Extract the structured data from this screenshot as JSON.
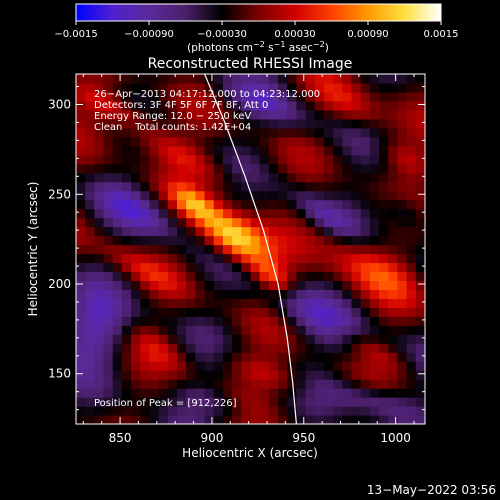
{
  "chart_data": {
    "type": "heatmap",
    "title": "Reconstructed RHESSI Image",
    "xlabel": "Heliocentric X (arcsec)",
    "ylabel": "Heliocentric Y (arcsec)",
    "xlim": [
      826,
      1016
    ],
    "ylim": [
      122,
      317
    ],
    "x_ticks": [
      850,
      900,
      950,
      1000
    ],
    "y_ticks": [
      150,
      200,
      250,
      300
    ],
    "x_tick_labels": [
      "850",
      "900",
      "950",
      "1000"
    ],
    "y_tick_labels": [
      "150",
      "200",
      "250",
      "300"
    ],
    "colorbar": {
      "min": -0.0015,
      "max": 0.0015,
      "ticks": [
        -0.0015,
        -0.0009,
        -0.0003,
        0.0003,
        0.0009,
        0.0015
      ],
      "tick_labels": [
        "−0.0015",
        "−0.00090",
        "−0.00030",
        "0.00030",
        "0.00090",
        "0.0015"
      ],
      "label_parts": [
        "(photons cm",
        "−2",
        " s",
        "−1",
        " asec",
        "−2",
        ")"
      ],
      "colors": [
        "#0000ff",
        "#5020d0",
        "#5a2a9a",
        "#4a1f6a",
        "#000000",
        "#7a0000",
        "#d00000",
        "#ff4000",
        "#ff9a00",
        "#ffe040",
        "#ffffff"
      ]
    },
    "info_lines": [
      "26−Apr−2013 04:17:12.000 to 04:23:12.000",
      "Detectors: 3F 4F 5F 6F 7F 8F, Att 0",
      "Energy Range: 12.0 − 25.0 keV",
      "Clean    Total counts: 1.42E+04"
    ],
    "peak_label": "Position of Peak = [912,226]",
    "peak": [
      912,
      226
    ],
    "limb_curve": [
      [
        896,
        317
      ],
      [
        907,
        290
      ],
      [
        918,
        260
      ],
      [
        928,
        230
      ],
      [
        936,
        200
      ],
      [
        941,
        170
      ],
      [
        944,
        145
      ],
      [
        946,
        122
      ]
    ],
    "sources": [
      {
        "x": 912,
        "y": 226,
        "a": 15,
        "b": 8,
        "angle": -35,
        "value": 0.0016
      },
      {
        "x": 890,
        "y": 245,
        "a": 10,
        "b": 5,
        "angle": -35,
        "value": 0.0008
      },
      {
        "x": 933,
        "y": 204,
        "a": 9,
        "b": 5,
        "angle": -35,
        "value": 0.0008
      },
      {
        "x": 878,
        "y": 275,
        "a": 30,
        "b": 6,
        "angle": -28,
        "value": 0.0006
      },
      {
        "x": 845,
        "y": 300,
        "a": 20,
        "b": 5,
        "angle": -25,
        "value": 0.0006
      },
      {
        "x": 985,
        "y": 210,
        "a": 22,
        "b": 9,
        "angle": -30,
        "value": 0.0007
      },
      {
        "x": 975,
        "y": 300,
        "a": 15,
        "b": 7,
        "angle": -30,
        "value": 0.0006
      },
      {
        "x": 930,
        "y": 150,
        "a": 20,
        "b": 6,
        "angle": -20,
        "value": 0.0005
      },
      {
        "x": 985,
        "y": 165,
        "a": 18,
        "b": 5,
        "angle": -28,
        "value": 0.0005
      },
      {
        "x": 860,
        "y": 210,
        "a": 20,
        "b": 5,
        "angle": -30,
        "value": 0.0004
      },
      {
        "x": 870,
        "y": 165,
        "a": 15,
        "b": 6,
        "angle": -35,
        "value": 0.0004
      },
      {
        "x": 1005,
        "y": 270,
        "a": 12,
        "b": 6,
        "angle": -30,
        "value": 0.0005
      },
      {
        "x": 960,
        "y": 240,
        "a": 15,
        "b": 5,
        "angle": -35,
        "value": -0.0005
      },
      {
        "x": 860,
        "y": 240,
        "a": 18,
        "b": 7,
        "angle": -30,
        "value": -0.0006
      },
      {
        "x": 835,
        "y": 175,
        "a": 15,
        "b": 15,
        "angle": 0,
        "value": -0.0007
      },
      {
        "x": 960,
        "y": 180,
        "a": 25,
        "b": 8,
        "angle": -30,
        "value": -0.0006
      },
      {
        "x": 930,
        "y": 300,
        "a": 20,
        "b": 6,
        "angle": -25,
        "value": -0.0005
      },
      {
        "x": 990,
        "y": 135,
        "a": 20,
        "b": 6,
        "angle": -15,
        "value": -0.0006
      },
      {
        "x": 900,
        "y": 135,
        "a": 15,
        "b": 5,
        "angle": -20,
        "value": -0.0004
      },
      {
        "x": 1005,
        "y": 240,
        "a": 10,
        "b": 6,
        "angle": -30,
        "value": -0.0005
      }
    ],
    "grid": false
  },
  "footer": {
    "timestamp": "13−May−2022 03:56"
  }
}
